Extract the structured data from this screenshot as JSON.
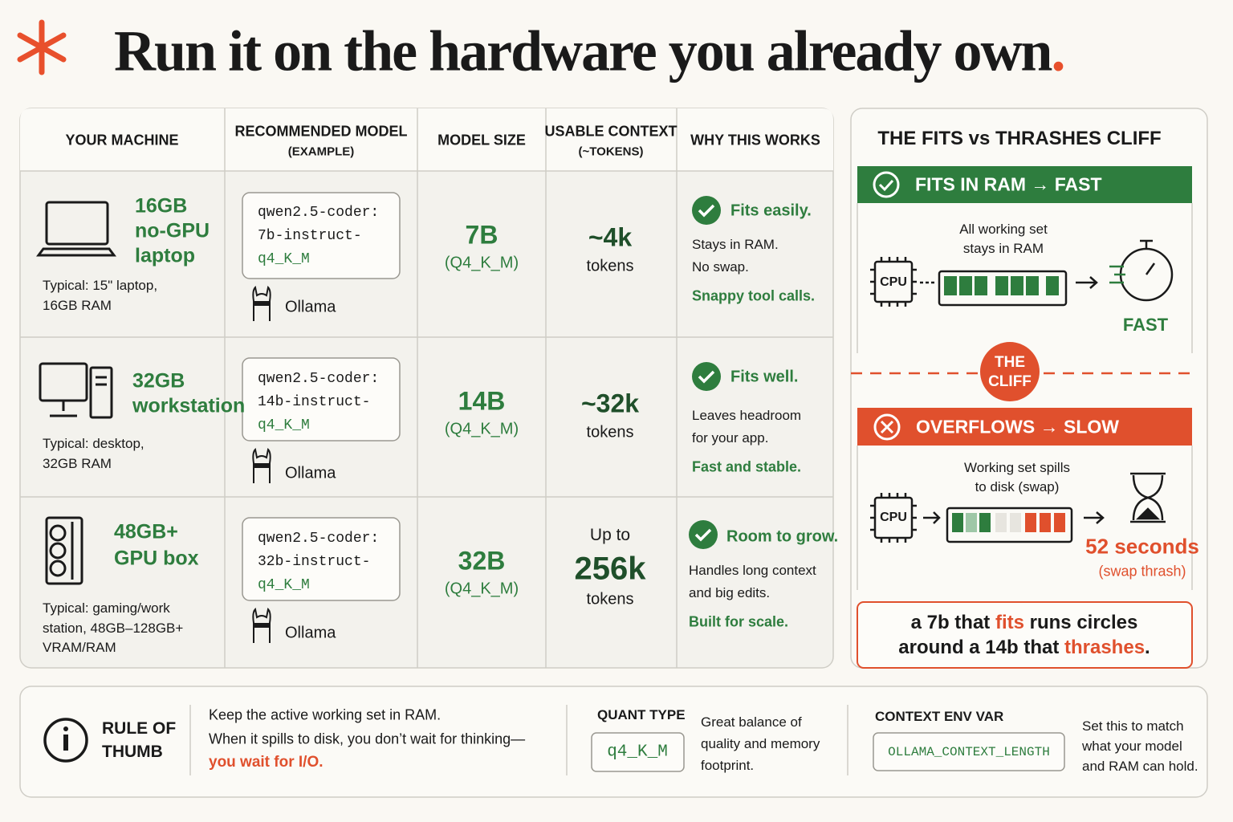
{
  "header": {
    "title": "Run it on the hardware you already own",
    "title_end": "."
  },
  "table": {
    "columns": [
      [
        "YOUR MACHINE"
      ],
      [
        "RECOMMENDED MODEL",
        "(EXAMPLE)"
      ],
      [
        "MODEL SIZE"
      ],
      [
        "USABLE CONTEXT",
        "(~TOKENS)"
      ],
      [
        "WHY THIS WORKS"
      ]
    ],
    "rows": [
      {
        "machine": [
          "16GB",
          "no-GPU",
          "laptop"
        ],
        "typical": [
          "Typical: 15\" laptop,",
          "16GB RAM"
        ],
        "model": [
          "qwen2.5-coder:",
          "7b-instruct-",
          "q4_K_M"
        ],
        "runtime": "Ollama",
        "size": "7B",
        "quant": "(Q4_K_M)",
        "context": [
          "~4k",
          "tokens"
        ],
        "why_title": "Fits easily.",
        "why": [
          "Stays in RAM.",
          "No swap."
        ],
        "why_result": "Snappy tool calls."
      },
      {
        "machine": [
          "32GB",
          "workstation"
        ],
        "typical": [
          "Typical: desktop,",
          "32GB RAM"
        ],
        "model": [
          "qwen2.5-coder:",
          "14b-instruct-",
          "q4_K_M"
        ],
        "runtime": "Ollama",
        "size": "14B",
        "quant": "(Q4_K_M)",
        "context": [
          "~32k",
          "tokens"
        ],
        "why_title": "Fits well.",
        "why": [
          "Leaves headroom",
          "for your app."
        ],
        "why_result": "Fast and stable."
      },
      {
        "machine": [
          "48GB+",
          "GPU box"
        ],
        "typical": [
          "Typical: gaming/work",
          "station, 48GB–128GB+",
          "VRAM/RAM"
        ],
        "model": [
          "qwen2.5-coder:",
          "32b-instruct-",
          "q4_K_M"
        ],
        "runtime": "Ollama",
        "size": "32B",
        "quant": "(Q4_K_M)",
        "context": [
          "Up to",
          "256k",
          "tokens"
        ],
        "why_title": "Room to grow.",
        "why": [
          "Handles long context",
          "and big edits."
        ],
        "why_result": "Built for scale."
      }
    ]
  },
  "cliff_panel": {
    "title": "THE FITS vs THRASHES CLIFF",
    "fits": {
      "header": "FITS IN RAM → FAST",
      "caption": [
        "All working set",
        "stays in RAM"
      ],
      "cpu": "CPU",
      "result": "FAST"
    },
    "cliff": [
      "THE",
      "CLIFF"
    ],
    "overflows": {
      "header": "OVERFLOWS → SLOW",
      "caption": [
        "Working set spills",
        "to disk (swap)"
      ],
      "cpu": "CPU",
      "result": "52 seconds",
      "note": "(swap thrash)"
    },
    "quote": [
      [
        "a 7b that ",
        "fits",
        " runs circles"
      ],
      [
        "around a 14b that ",
        "thrashes",
        "."
      ]
    ]
  },
  "footer": {
    "rule": [
      "RULE OF",
      "THUMB"
    ],
    "text": [
      "Keep the active working set in RAM.",
      "When it spills to disk, you don’t wait for thinking—",
      "you wait for I/O."
    ],
    "quant_label": "QUANT TYPE",
    "quant_code": "q4_K_M",
    "quant_desc": [
      "Great balance of",
      "quality and memory",
      "footprint."
    ],
    "env_label": "CONTEXT ENV VAR",
    "env_code": "OLLAMA_CONTEXT_LENGTH",
    "env_desc": [
      "Set this to match",
      "what your model",
      "and RAM can hold."
    ]
  }
}
